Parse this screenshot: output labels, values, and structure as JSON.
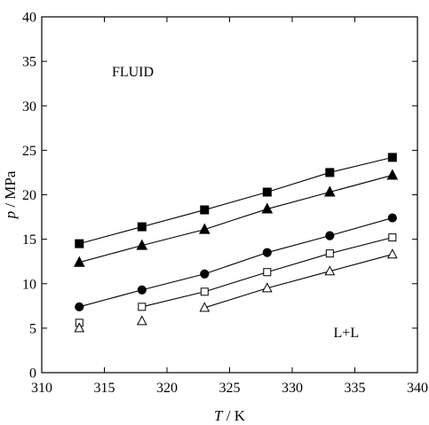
{
  "chart_data": {
    "type": "scatter",
    "xlabel_var": "T",
    "xlabel_unit": " / K",
    "ylabel_var": "p",
    "ylabel_unit": " / MPa",
    "xlim": [
      310,
      340
    ],
    "ylim": [
      0,
      40
    ],
    "xticks": [
      310,
      315,
      320,
      325,
      330,
      335,
      340
    ],
    "yticks": [
      0,
      5,
      10,
      15,
      20,
      25,
      30,
      35,
      40
    ],
    "grid": false,
    "annotations": [
      {
        "text": "FLUID",
        "x": 315.6,
        "y": 33.3
      },
      {
        "text": "L+L",
        "x": 333.3,
        "y": 4.0
      }
    ],
    "series": [
      {
        "marker": "square-filled",
        "connected": true,
        "points": [
          [
            313,
            14.5
          ],
          [
            318,
            16.4
          ],
          [
            323,
            18.3
          ],
          [
            328,
            20.3
          ],
          [
            333,
            22.5
          ],
          [
            338,
            24.2
          ]
        ]
      },
      {
        "marker": "triangle-filled",
        "connected": true,
        "points": [
          [
            313,
            12.4
          ],
          [
            318,
            14.3
          ],
          [
            323,
            16.1
          ],
          [
            328,
            18.4
          ],
          [
            333,
            20.3
          ],
          [
            338,
            22.2
          ]
        ]
      },
      {
        "marker": "circle-filled",
        "connected": true,
        "points": [
          [
            313,
            7.4
          ],
          [
            318,
            9.3
          ],
          [
            323,
            11.1
          ],
          [
            328,
            13.5
          ],
          [
            333,
            15.4
          ],
          [
            338,
            17.4
          ]
        ]
      },
      {
        "marker": "square-open",
        "connected": true,
        "points": [
          [
            318,
            7.4
          ],
          [
            323,
            9.1
          ],
          [
            328,
            11.3
          ],
          [
            333,
            13.4
          ],
          [
            338,
            15.2
          ]
        ]
      },
      {
        "marker": "triangle-open",
        "connected": true,
        "points": [
          [
            323,
            7.3
          ],
          [
            328,
            9.5
          ],
          [
            333,
            11.4
          ],
          [
            338,
            13.3
          ]
        ]
      },
      {
        "marker": "square-open",
        "connected": false,
        "points": [
          [
            313,
            5.6
          ]
        ]
      },
      {
        "marker": "triangle-open",
        "connected": false,
        "points": [
          [
            313,
            5.0
          ],
          [
            318,
            5.8
          ]
        ]
      }
    ]
  }
}
